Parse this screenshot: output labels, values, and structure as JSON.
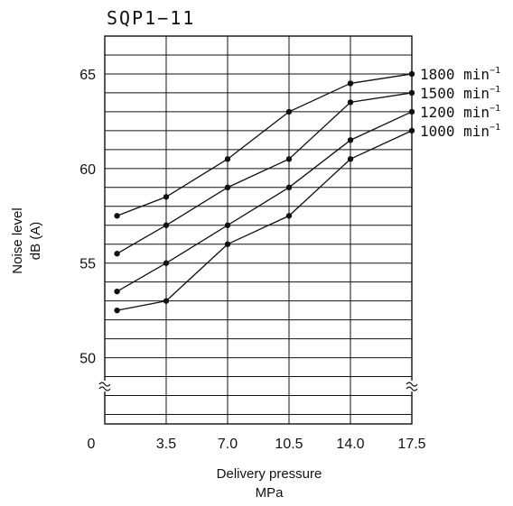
{
  "chart_data": {
    "type": "line",
    "title": "SQP1−11",
    "xlabel": [
      "Delivery pressure",
      "MPa"
    ],
    "ylabel": [
      "Noise level",
      "dB (A)"
    ],
    "xlim": [
      0,
      17.5
    ],
    "ylim": [
      46.5,
      67
    ],
    "x_ticks": [
      "0",
      "3.5",
      "7.0",
      "10.5",
      "14.0",
      "17.5"
    ],
    "x_tick_values": [
      0,
      3.5,
      7.0,
      10.5,
      14.0,
      17.5
    ],
    "y_ticks": [
      "50",
      "55",
      "60",
      "65"
    ],
    "y_tick_values": [
      50,
      55,
      60,
      65
    ],
    "axis_break": true,
    "grid": true,
    "unit": "min",
    "unit_exponent": "−1",
    "series": [
      {
        "name": "1800",
        "x": [
          0.7,
          3.5,
          7.0,
          10.5,
          14.0,
          17.5
        ],
        "values": [
          57.5,
          58.5,
          60.5,
          63.0,
          64.5,
          65.0
        ]
      },
      {
        "name": "1500",
        "x": [
          0.7,
          3.5,
          7.0,
          10.5,
          14.0,
          17.5
        ],
        "values": [
          55.5,
          57.0,
          59.0,
          60.5,
          63.5,
          64.0
        ]
      },
      {
        "name": "1200",
        "x": [
          0.7,
          3.5,
          7.0,
          10.5,
          14.0,
          17.5
        ],
        "values": [
          53.5,
          55.0,
          57.0,
          59.0,
          61.5,
          63.0
        ]
      },
      {
        "name": "1000",
        "x": [
          0.7,
          3.5,
          7.0,
          10.5,
          14.0,
          17.5
        ],
        "values": [
          52.5,
          53.0,
          56.0,
          57.5,
          60.5,
          62.0
        ]
      }
    ]
  }
}
